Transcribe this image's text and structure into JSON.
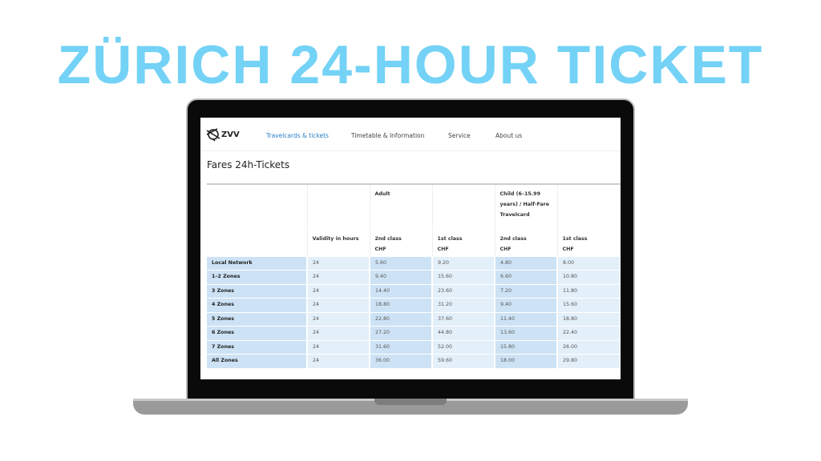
{
  "headline": "ZÜRICH 24-HOUR TICKET",
  "nav": {
    "logo": "ZVV",
    "items": [
      "Travelcards & tickets",
      "Timetable & Information",
      "Service",
      "About us"
    ],
    "active": 0,
    "accent": "#2a7fc7"
  },
  "page_title": "Fares 24h-Tickets",
  "table": {
    "group_headers": [
      "",
      "",
      "Adult",
      "",
      "Child (6–15.99 years) / Half-Fare Travelcard",
      ""
    ],
    "headers": [
      [
        "",
        ""
      ],
      [
        "Validity in hours",
        ""
      ],
      [
        "2nd class",
        "CHF"
      ],
      [
        "1st class",
        "CHF"
      ],
      [
        "2nd class",
        "CHF"
      ],
      [
        "1st class",
        "CHF"
      ]
    ],
    "rows": [
      [
        "Local Network",
        "24",
        "5.60",
        "9.20",
        "4.80",
        "8.00"
      ],
      [
        "1–2 Zones",
        "24",
        "9.40",
        "15.60",
        "6.60",
        "10.80"
      ],
      [
        "3 Zones",
        "24",
        "14.40",
        "23.60",
        "7.20",
        "11.80"
      ],
      [
        "4 Zones",
        "24",
        "18.80",
        "31.20",
        "9.40",
        "15.60"
      ],
      [
        "5 Zones",
        "24",
        "22.80",
        "37.60",
        "11.40",
        "18.80"
      ],
      [
        "6 Zones",
        "24",
        "27.20",
        "44.80",
        "13.60",
        "22.40"
      ],
      [
        "7 Zones",
        "24",
        "31.60",
        "52.00",
        "15.80",
        "26.00"
      ],
      [
        "All Zones",
        "24",
        "36.00",
        "59.60",
        "18.00",
        "29.80"
      ]
    ]
  },
  "colors": {
    "headline": "#73d2f6",
    "row_light": "#e3eff9",
    "row_dark": "#cde3f5"
  }
}
